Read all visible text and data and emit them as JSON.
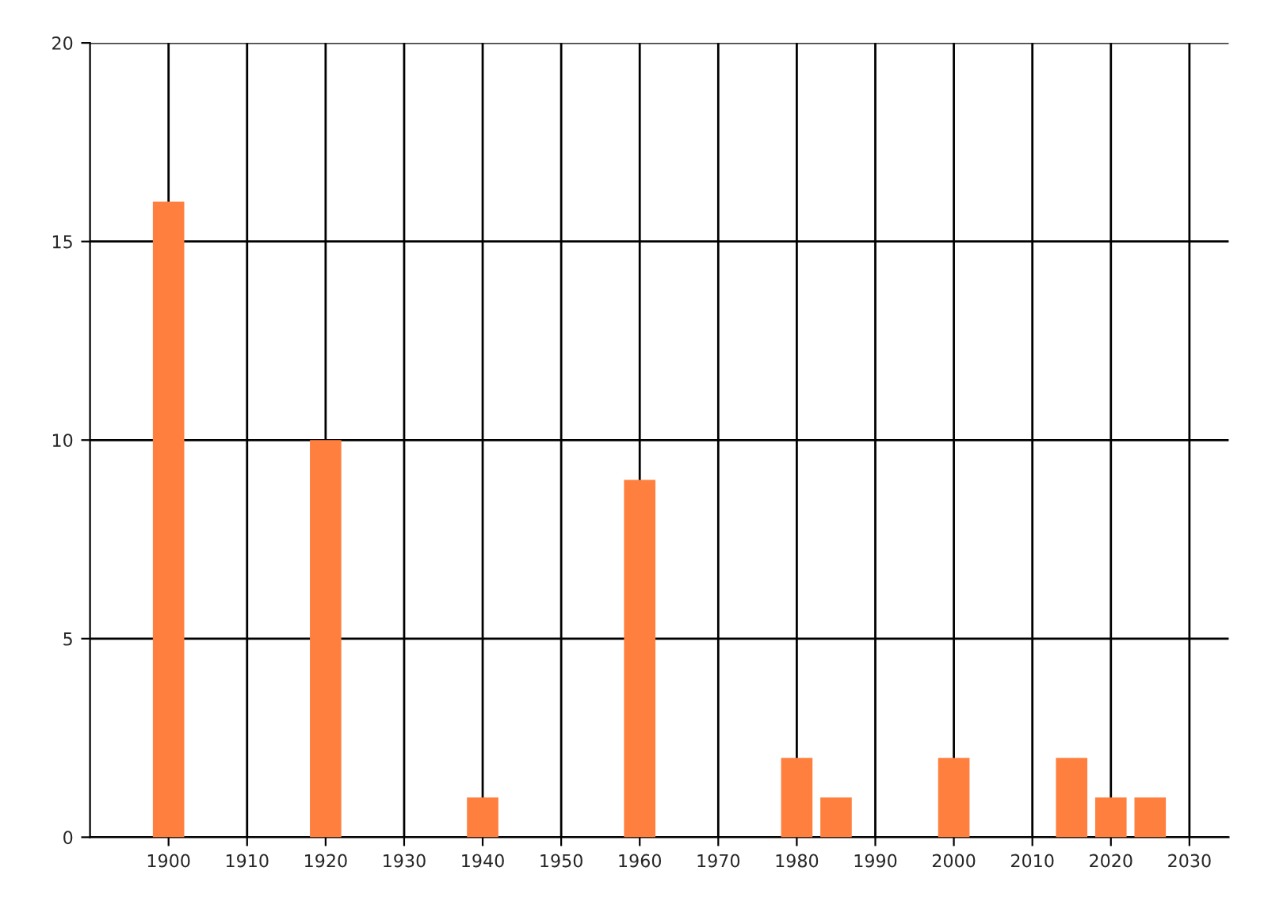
{
  "chart_data": {
    "type": "bar",
    "x": [
      1900,
      1920,
      1940,
      1960,
      1980,
      1985,
      2000,
      2015,
      2020,
      2025
    ],
    "values": [
      16,
      10,
      1,
      9,
      2,
      1,
      2,
      2,
      1,
      1
    ],
    "color": "#ff7f3f",
    "xlim": [
      1890,
      2035
    ],
    "xticks": [
      1900,
      1910,
      1920,
      1930,
      1940,
      1950,
      1960,
      1970,
      1980,
      1990,
      2000,
      2010,
      2020,
      2030
    ],
    "ylim": [
      0,
      20
    ],
    "yticks": [
      0,
      5,
      10,
      15,
      20
    ],
    "grid": true
  }
}
